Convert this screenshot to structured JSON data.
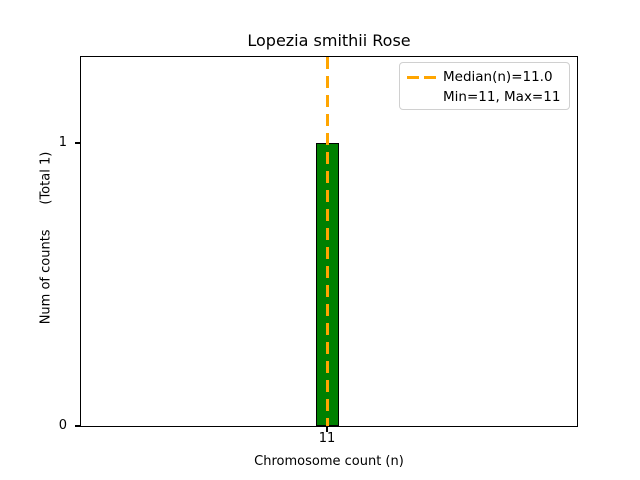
{
  "chart_data": {
    "type": "bar",
    "title": "Lopezia smithii Rose",
    "xlabel": "Chromosome count (n)",
    "ylabel": "Num of counts      (Total 1)",
    "categories": [
      "11"
    ],
    "values": [
      1
    ],
    "yticks": [
      "0",
      "1"
    ],
    "ylim": [
      0,
      1.3
    ],
    "grid": false,
    "legend": [
      "Median(n)=11.0",
      "Min=11, Max=11"
    ],
    "legend_position": "upper right",
    "stats": {
      "median": 11.0,
      "min": 11,
      "max": 11,
      "total_counts": 1
    },
    "colors": {
      "bar_fill": "#008000",
      "bar_edge": "#000000",
      "median_line": "#FFA500",
      "axis": "#000000",
      "background": "#FFFFFF",
      "legend_border": "#D0D0D0"
    }
  }
}
